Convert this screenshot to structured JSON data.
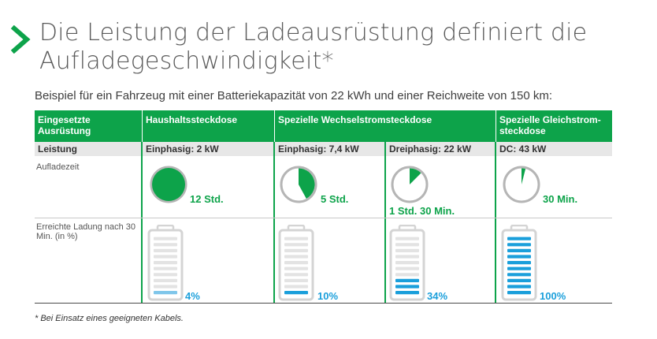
{
  "title": "Die Leistung der Ladeausrüstung definiert die Aufladegeschwindigkeit*",
  "title_lines": [
    "Die Leistung der Ladeausrüstung definiert die",
    "Aufladegeschwindigkeit*"
  ],
  "subtitle": "Beispiel für ein Fahrzeug mit einer Batteriekapazität von 22 kWh und einer Reichweite von 150 km:",
  "colors": {
    "green": "#0da34a",
    "blue": "#1a9fdb",
    "battery_gray": "#d4d4d4",
    "header_gray": "#e7e7e7"
  },
  "table": {
    "headers": [
      "Eingesetzte Ausrüstung",
      "Haushaltssteckdose",
      "Spezielle Wechselstromsteckdose",
      "Spezielle Gleichstrom-steckdose"
    ],
    "row_labels": {
      "power": "Leistung",
      "charge_time": "Aufladezeit",
      "charged": "Erreichte Ladung nach 30 Min. (in %)"
    },
    "columns": [
      {
        "power": "Einphasig: 2 kW",
        "time": "12 Std.",
        "time_fraction": 1.0,
        "charge_label": "4%",
        "charge_percent": 4
      },
      {
        "power": "Einphasig: 7,4 kW",
        "time": "5 Std.",
        "time_fraction": 0.42,
        "charge_label": "10%",
        "charge_percent": 10
      },
      {
        "power": "Dreiphasig: 22 kW",
        "time": "1 Std. 30 Min.",
        "time_fraction": 0.125,
        "charge_label": "34%",
        "charge_percent": 34
      },
      {
        "power": "DC: 43 kW",
        "time": "30 Min.",
        "time_fraction": 0.04,
        "charge_label": "100%",
        "charge_percent": 100
      }
    ]
  },
  "icons": {
    "title_marker": "chevron-right-icon",
    "clock": "clock-pie-icon",
    "battery": "battery-icon"
  },
  "footnote": "* Bei Einsatz eines geeigneten Kabels."
}
